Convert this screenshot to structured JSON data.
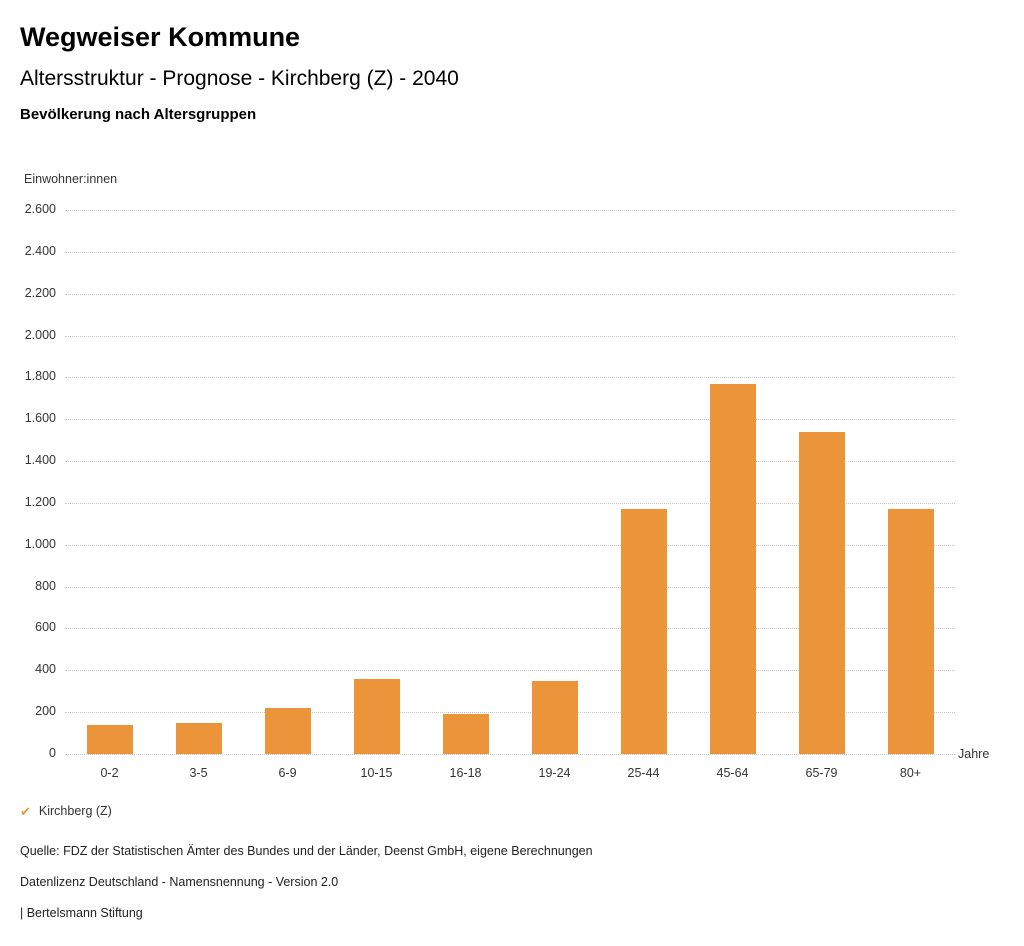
{
  "header": {
    "title": "Wegweiser Kommune",
    "subtitle": "Altersstruktur - Prognose - Kirchberg (Z) - 2040",
    "section_title": "Bevölkerung nach Altersgruppen"
  },
  "chart_data": {
    "type": "bar",
    "title": "Bevölkerung nach Altersgruppen",
    "xlabel": "Jahre",
    "ylabel": "Einwohner:innen",
    "categories": [
      "0-2",
      "3-5",
      "6-9",
      "10-15",
      "16-18",
      "19-24",
      "25-44",
      "45-64",
      "65-79",
      "80+"
    ],
    "series": [
      {
        "name": "Kirchberg (Z)",
        "values": [
          140,
          150,
          220,
          360,
          190,
          350,
          1170,
          1770,
          1540,
          1170
        ]
      }
    ],
    "ylim": [
      0,
      2600
    ],
    "ytick_step": 200,
    "ytick_labels": [
      "0",
      "200",
      "400",
      "600",
      "800",
      "1.000",
      "1.200",
      "1.400",
      "1.600",
      "1.800",
      "2.000",
      "2.200",
      "2.400",
      "2.600"
    ],
    "grid": true,
    "bar_color": "#EB9439",
    "legend_position": "bottom"
  },
  "legend": {
    "items": [
      {
        "label": "Kirchberg (Z)",
        "color": "#EB9439",
        "symbol": "check"
      }
    ]
  },
  "footer": {
    "source": "Quelle: FDZ der Statistischen Ämter des Bundes und der Länder, Deenst GmbH, eigene Berechnungen",
    "license": "Datenlizenz Deutschland - Namensnennung - Version 2.0",
    "attribution": "| Bertelsmann Stiftung"
  }
}
